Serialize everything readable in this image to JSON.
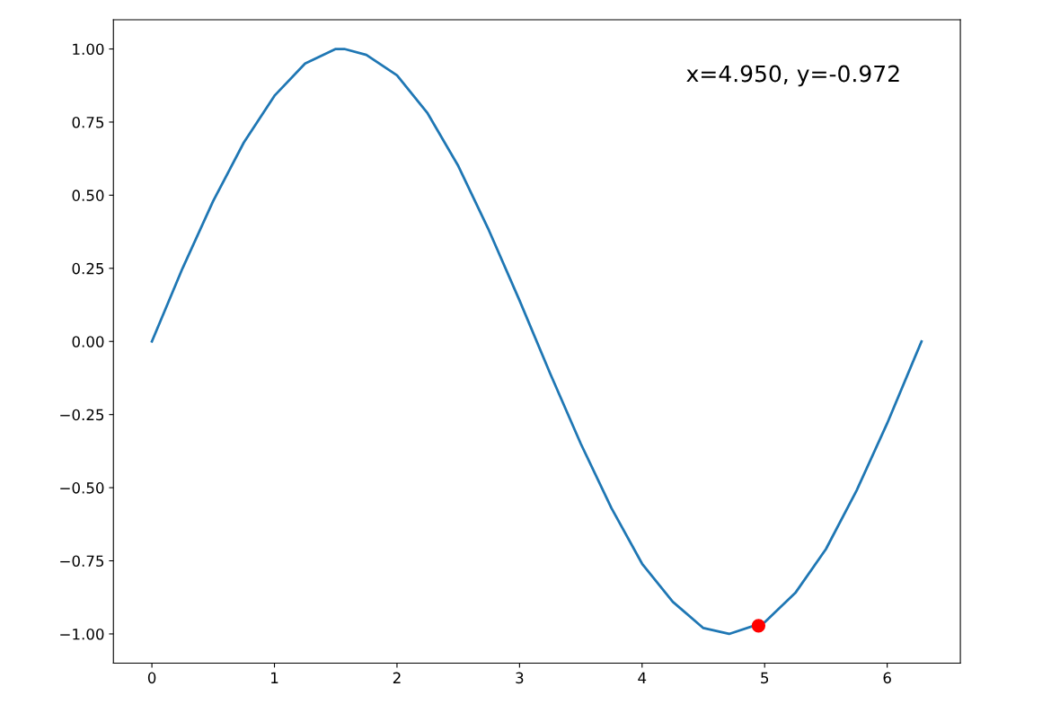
{
  "chart_data": {
    "type": "line",
    "xlim": [
      -0.314,
      6.597
    ],
    "ylim": [
      -1.1,
      1.1
    ],
    "xticks": [
      0,
      1,
      2,
      3,
      4,
      5,
      6
    ],
    "yticks": [
      {
        "value": -1,
        "label": "−1.00"
      },
      {
        "value": -0.75,
        "label": "−0.75"
      },
      {
        "value": -0.5,
        "label": "−0.50"
      },
      {
        "value": -0.25,
        "label": "−0.25"
      },
      {
        "value": 0,
        "label": "0.00"
      },
      {
        "value": 0.25,
        "label": "0.25"
      },
      {
        "value": 0.5,
        "label": "0.50"
      },
      {
        "value": 0.75,
        "label": "0.75"
      },
      {
        "value": 1,
        "label": "1.00"
      }
    ],
    "grid": false,
    "annotations": [
      "x=4.950, y=-0.972"
    ],
    "series": [
      {
        "color": "#1f77b4",
        "marker": "none",
        "x": [
          0,
          0.25,
          0.5,
          0.75,
          1,
          1.25,
          1.5,
          1.57,
          1.75,
          2,
          2.25,
          2.5,
          2.75,
          3,
          3.25,
          3.5,
          3.75,
          4,
          4.25,
          4.5,
          4.71,
          5,
          5.25,
          5.5,
          5.75,
          6,
          6.28
        ],
        "values": [
          0,
          0.25,
          0.48,
          0.68,
          0.84,
          0.95,
          1.0,
          1.0,
          0.98,
          0.91,
          0.78,
          0.6,
          0.38,
          0.14,
          -0.11,
          -0.35,
          -0.57,
          -0.76,
          -0.89,
          -0.98,
          -1.0,
          -0.96,
          -0.86,
          -0.71,
          -0.51,
          -0.28,
          0
        ]
      },
      {
        "type": "scatter",
        "color": "#ff0000",
        "marker": "circle",
        "x": [
          4.95
        ],
        "values": [
          -0.972
        ]
      }
    ]
  }
}
